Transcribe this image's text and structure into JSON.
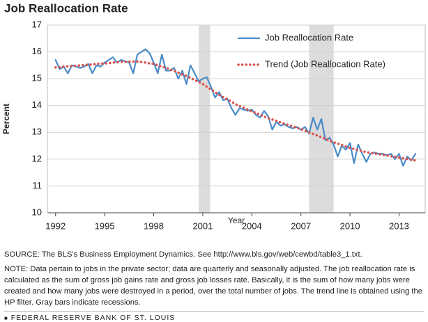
{
  "chart_data": {
    "type": "line",
    "title": "Job Reallocation Rate",
    "ylabel": "Percent",
    "xlabel": "Year",
    "source": "SOURCE: The BLS's Business Employment Dynamics. See  http://www.bls.gov/web/cewbd/table3_1.txt.",
    "note": "NOTE: Data pertain to jobs in the private sector; data are quarterly and seasonally adjusted. The job reallocation rate is calculated as the sum of gross job gains rate and gross job losses rate. Basically, it is the sum of how many jobs were created and how many jobs were destroyed in a period, over the total number of jobs. The trend line is obtained using the HP filter. Gray bars indicate recessions.",
    "footer": "FEDERAL RESERVE BANK OF ST. LOUIS",
    "recessions": [
      [
        2000.75,
        2001.45
      ],
      [
        2007.5,
        2009.0
      ]
    ],
    "recession_color": "#dcdcdc",
    "xlim": [
      1991.5,
      2014.6
    ],
    "xticks": [
      1992,
      1995,
      1998,
      2001,
      2004,
      2007,
      2010,
      2013
    ],
    "ylim": [
      10,
      17
    ],
    "yticks": [
      10,
      11,
      12,
      13,
      14,
      15,
      16,
      17
    ],
    "grid": true,
    "x": [
      1992,
      1992.25,
      1992.5,
      1992.75,
      1993,
      1993.25,
      1993.5,
      1993.75,
      1994,
      1994.25,
      1994.5,
      1994.75,
      1995,
      1995.25,
      1995.5,
      1995.75,
      1996,
      1996.25,
      1996.5,
      1996.75,
      1997,
      1997.25,
      1997.5,
      1997.75,
      1998,
      1998.25,
      1998.5,
      1998.75,
      1999,
      1999.25,
      1999.5,
      1999.75,
      2000,
      2000.25,
      2000.5,
      2000.75,
      2001,
      2001.25,
      2001.5,
      2001.75,
      2002,
      2002.25,
      2002.5,
      2002.75,
      2003,
      2003.25,
      2003.5,
      2003.75,
      2004,
      2004.25,
      2004.5,
      2004.75,
      2005,
      2005.25,
      2005.5,
      2005.75,
      2006,
      2006.25,
      2006.5,
      2006.75,
      2007,
      2007.25,
      2007.5,
      2007.75,
      2008,
      2008.25,
      2008.5,
      2008.75,
      2009,
      2009.25,
      2009.5,
      2009.75,
      2010,
      2010.25,
      2010.5,
      2010.75,
      2011,
      2011.25,
      2011.5,
      2011.75,
      2012,
      2012.25,
      2012.5,
      2012.75,
      2013,
      2013.25,
      2013.5,
      2013.75,
      2014
    ],
    "series": [
      {
        "name": "Job Reallocation Rate",
        "color": "#4a8bc9",
        "style": "solid",
        "values": [
          15.7,
          15.35,
          15.45,
          15.2,
          15.5,
          15.45,
          15.4,
          15.45,
          15.55,
          15.2,
          15.5,
          15.45,
          15.6,
          15.7,
          15.8,
          15.6,
          15.7,
          15.65,
          15.6,
          15.2,
          15.9,
          16.0,
          16.1,
          15.95,
          15.6,
          15.2,
          15.9,
          15.3,
          15.3,
          15.4,
          15.0,
          15.3,
          14.8,
          15.5,
          15.2,
          14.9,
          15.0,
          15.05,
          14.7,
          14.3,
          14.5,
          14.2,
          14.25,
          13.9,
          13.65,
          13.9,
          13.85,
          13.8,
          13.85,
          13.65,
          13.55,
          13.8,
          13.6,
          13.1,
          13.4,
          13.25,
          13.3,
          13.2,
          13.15,
          13.2,
          13.1,
          13.2,
          12.95,
          13.55,
          13.1,
          13.5,
          12.7,
          12.8,
          12.55,
          12.1,
          12.5,
          12.35,
          12.6,
          11.85,
          12.55,
          12.2,
          11.9,
          12.2,
          12.25,
          12.2,
          12.2,
          12.15,
          12.2,
          12.0,
          12.2,
          11.75,
          12.1,
          11.95,
          12.2
        ]
      },
      {
        "name": "Trend (Job Reallocation Rate)",
        "color": "#d9534f",
        "style": "dotted",
        "values": [
          15.42,
          15.43,
          15.45,
          15.46,
          15.47,
          15.48,
          15.5,
          15.51,
          15.52,
          15.53,
          15.55,
          15.56,
          15.57,
          15.58,
          15.6,
          15.61,
          15.62,
          15.63,
          15.63,
          15.64,
          15.64,
          15.62,
          15.6,
          15.57,
          15.55,
          15.5,
          15.45,
          15.4,
          15.35,
          15.29,
          15.23,
          15.16,
          15.1,
          15.03,
          14.95,
          14.88,
          14.8,
          14.7,
          14.6,
          14.5,
          14.4,
          14.31,
          14.23,
          14.14,
          14.05,
          13.98,
          13.92,
          13.85,
          13.78,
          13.72,
          13.66,
          13.59,
          13.53,
          13.48,
          13.43,
          13.37,
          13.32,
          13.27,
          13.22,
          13.17,
          13.12,
          13.06,
          13.0,
          12.94,
          12.88,
          12.82,
          12.76,
          12.69,
          12.63,
          12.58,
          12.53,
          12.47,
          12.42,
          12.38,
          12.34,
          12.3,
          12.26,
          12.24,
          12.21,
          12.19,
          12.16,
          12.14,
          12.11,
          12.09,
          12.06,
          12.03,
          12.01,
          11.98,
          11.95
        ]
      }
    ]
  }
}
